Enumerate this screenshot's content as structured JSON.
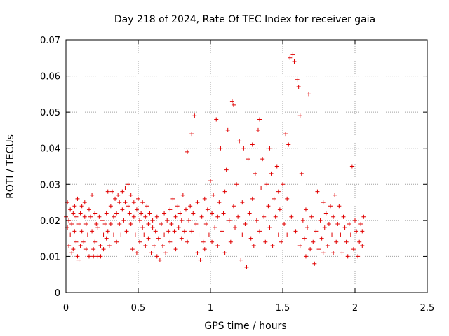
{
  "chart_data": {
    "type": "scatter",
    "title": "Day 218 of 2024, Rate Of TEC Index for receiver gaia",
    "xlabel": "GPS time / hours",
    "ylabel": "ROTI / TECUs",
    "xlim": [
      0,
      2.5
    ],
    "ylim": [
      0,
      0.07
    ],
    "xticks": [
      "0",
      "0.5",
      "1",
      "1.5",
      "2",
      "2.5"
    ],
    "yticks": [
      "0",
      "0.01",
      "0.02",
      "0.03",
      "0.04",
      "0.05",
      "0.06",
      "0.07"
    ],
    "grid": true,
    "marker": "+",
    "color": "#e00000",
    "series": [
      {
        "values": [
          [
            0.0,
            0.021
          ],
          [
            0.01,
            0.018
          ],
          [
            0.01,
            0.025
          ],
          [
            0.02,
            0.013
          ],
          [
            0.02,
            0.02
          ],
          [
            0.03,
            0.023
          ],
          [
            0.03,
            0.016
          ],
          [
            0.04,
            0.019
          ],
          [
            0.04,
            0.011
          ],
          [
            0.05,
            0.022
          ],
          [
            0.05,
            0.012
          ],
          [
            0.06,
            0.024
          ],
          [
            0.06,
            0.017
          ],
          [
            0.07,
            0.014
          ],
          [
            0.07,
            0.021
          ],
          [
            0.08,
            0.01
          ],
          [
            0.08,
            0.026
          ],
          [
            0.09,
            0.009
          ],
          [
            0.09,
            0.019
          ],
          [
            0.1,
            0.022
          ],
          [
            0.1,
            0.013
          ],
          [
            0.11,
            0.024
          ],
          [
            0.11,
            0.017
          ],
          [
            0.12,
            0.014
          ],
          [
            0.13,
            0.021
          ],
          [
            0.13,
            0.025
          ],
          [
            0.14,
            0.012
          ],
          [
            0.14,
            0.019
          ],
          [
            0.15,
            0.016
          ],
          [
            0.16,
            0.023
          ],
          [
            0.16,
            0.01
          ],
          [
            0.17,
            0.021
          ],
          [
            0.18,
            0.017
          ],
          [
            0.18,
            0.027
          ],
          [
            0.19,
            0.012
          ],
          [
            0.19,
            0.01
          ],
          [
            0.2,
            0.022
          ],
          [
            0.2,
            0.014
          ],
          [
            0.21,
            0.019
          ],
          [
            0.22,
            0.01
          ],
          [
            0.22,
            0.018
          ],
          [
            0.23,
            0.021
          ],
          [
            0.24,
            0.013
          ],
          [
            0.24,
            0.01
          ],
          [
            0.25,
            0.02
          ],
          [
            0.26,
            0.016
          ],
          [
            0.26,
            0.012
          ],
          [
            0.27,
            0.019
          ],
          [
            0.28,
            0.015
          ],
          [
            0.28,
            0.022
          ],
          [
            0.29,
            0.028
          ],
          [
            0.29,
            0.017
          ],
          [
            0.3,
            0.013
          ],
          [
            0.31,
            0.024
          ],
          [
            0.31,
            0.019
          ],
          [
            0.32,
            0.028
          ],
          [
            0.33,
            0.021
          ],
          [
            0.33,
            0.016
          ],
          [
            0.34,
            0.026
          ],
          [
            0.35,
            0.022
          ],
          [
            0.35,
            0.014
          ],
          [
            0.36,
            0.027
          ],
          [
            0.37,
            0.019
          ],
          [
            0.37,
            0.025
          ],
          [
            0.38,
            0.016
          ],
          [
            0.39,
            0.023
          ],
          [
            0.39,
            0.028
          ],
          [
            0.4,
            0.02
          ],
          [
            0.41,
            0.025
          ],
          [
            0.41,
            0.029
          ],
          [
            0.42,
            0.017
          ],
          [
            0.43,
            0.024
          ],
          [
            0.43,
            0.03
          ],
          [
            0.44,
            0.022
          ],
          [
            0.45,
            0.027
          ],
          [
            0.45,
            0.019
          ],
          [
            0.46,
            0.012
          ],
          [
            0.47,
            0.025
          ],
          [
            0.47,
            0.021
          ],
          [
            0.48,
            0.016
          ],
          [
            0.49,
            0.023
          ],
          [
            0.49,
            0.011
          ],
          [
            0.5,
            0.026
          ],
          [
            0.51,
            0.02
          ],
          [
            0.51,
            0.014
          ],
          [
            0.52,
            0.022
          ],
          [
            0.53,
            0.018
          ],
          [
            0.53,
            0.025
          ],
          [
            0.54,
            0.016
          ],
          [
            0.55,
            0.021
          ],
          [
            0.55,
            0.013
          ],
          [
            0.56,
            0.024
          ],
          [
            0.57,
            0.019
          ],
          [
            0.57,
            0.015
          ],
          [
            0.58,
            0.022
          ],
          [
            0.59,
            0.011
          ],
          [
            0.6,
            0.018
          ],
          [
            0.6,
            0.02
          ],
          [
            0.61,
            0.013
          ],
          [
            0.62,
            0.017
          ],
          [
            0.63,
            0.01
          ],
          [
            0.63,
            0.021
          ],
          [
            0.64,
            0.015
          ],
          [
            0.65,
            0.009
          ],
          [
            0.66,
            0.019
          ],
          [
            0.67,
            0.013
          ],
          [
            0.68,
            0.022
          ],
          [
            0.68,
            0.016
          ],
          [
            0.69,
            0.011
          ],
          [
            0.7,
            0.02
          ],
          [
            0.71,
            0.017
          ],
          [
            0.72,
            0.023
          ],
          [
            0.72,
            0.014
          ],
          [
            0.73,
            0.019
          ],
          [
            0.74,
            0.026
          ],
          [
            0.75,
            0.017
          ],
          [
            0.76,
            0.021
          ],
          [
            0.76,
            0.012
          ],
          [
            0.77,
            0.024
          ],
          [
            0.78,
            0.018
          ],
          [
            0.79,
            0.022
          ],
          [
            0.8,
            0.015
          ],
          [
            0.8,
            0.02
          ],
          [
            0.81,
            0.027
          ],
          [
            0.82,
            0.017
          ],
          [
            0.83,
            0.023
          ],
          [
            0.84,
            0.039
          ],
          [
            0.84,
            0.014
          ],
          [
            0.85,
            0.02
          ],
          [
            0.86,
            0.024
          ],
          [
            0.87,
            0.044
          ],
          [
            0.87,
            0.017
          ],
          [
            0.88,
            0.022
          ],
          [
            0.89,
            0.049
          ],
          [
            0.9,
            0.019
          ],
          [
            0.91,
            0.011
          ],
          [
            0.91,
            0.025
          ],
          [
            0.92,
            0.016
          ],
          [
            0.93,
            0.009
          ],
          [
            0.94,
            0.021
          ],
          [
            0.95,
            0.014
          ],
          [
            0.96,
            0.026
          ],
          [
            0.96,
            0.012
          ],
          [
            0.97,
            0.019
          ],
          [
            0.98,
            0.023
          ],
          [
            0.99,
            0.016
          ],
          [
            1.0,
            0.031
          ],
          [
            1.01,
            0.022
          ],
          [
            1.01,
            0.014
          ],
          [
            1.02,
            0.027
          ],
          [
            1.03,
            0.018
          ],
          [
            1.04,
            0.048
          ],
          [
            1.05,
            0.021
          ],
          [
            1.05,
            0.013
          ],
          [
            1.06,
            0.025
          ],
          [
            1.07,
            0.04
          ],
          [
            1.08,
            0.017
          ],
          [
            1.09,
            0.022
          ],
          [
            1.1,
            0.011
          ],
          [
            1.1,
            0.028
          ],
          [
            1.11,
            0.034
          ],
          [
            1.12,
            0.045
          ],
          [
            1.13,
            0.02
          ],
          [
            1.14,
            0.014
          ],
          [
            1.15,
            0.053
          ],
          [
            1.16,
            0.052
          ],
          [
            1.16,
            0.024
          ],
          [
            1.17,
            0.018
          ],
          [
            1.18,
            0.03
          ],
          [
            1.19,
            0.021
          ],
          [
            1.2,
            0.042
          ],
          [
            1.21,
            0.009
          ],
          [
            1.22,
            0.025
          ],
          [
            1.22,
            0.016
          ],
          [
            1.23,
            0.04
          ],
          [
            1.24,
            0.019
          ],
          [
            1.25,
            0.007
          ],
          [
            1.26,
            0.037
          ],
          [
            1.27,
            0.022
          ],
          [
            1.28,
            0.015
          ],
          [
            1.29,
            0.041
          ],
          [
            1.29,
            0.026
          ],
          [
            1.3,
            0.013
          ],
          [
            1.31,
            0.033
          ],
          [
            1.32,
            0.02
          ],
          [
            1.33,
            0.045
          ],
          [
            1.34,
            0.048
          ],
          [
            1.34,
            0.017
          ],
          [
            1.35,
            0.029
          ],
          [
            1.36,
            0.037
          ],
          [
            1.37,
            0.021
          ],
          [
            1.38,
            0.014
          ],
          [
            1.39,
            0.03
          ],
          [
            1.4,
            0.024
          ],
          [
            1.41,
            0.04
          ],
          [
            1.41,
            0.018
          ],
          [
            1.42,
            0.033
          ],
          [
            1.43,
            0.013
          ],
          [
            1.44,
            0.026
          ],
          [
            1.45,
            0.021
          ],
          [
            1.46,
            0.035
          ],
          [
            1.47,
            0.016
          ],
          [
            1.47,
            0.028
          ],
          [
            1.48,
            0.023
          ],
          [
            1.49,
            0.014
          ],
          [
            1.5,
            0.03
          ],
          [
            1.51,
            0.019
          ],
          [
            1.52,
            0.044
          ],
          [
            1.53,
            0.026
          ],
          [
            1.53,
            0.016
          ],
          [
            1.54,
            0.041
          ],
          [
            1.55,
            0.065
          ],
          [
            1.56,
            0.021
          ],
          [
            1.57,
            0.066
          ],
          [
            1.58,
            0.064
          ],
          [
            1.59,
            0.017
          ],
          [
            1.6,
            0.059
          ],
          [
            1.61,
            0.057
          ],
          [
            1.62,
            0.013
          ],
          [
            1.62,
            0.049
          ],
          [
            1.63,
            0.033
          ],
          [
            1.64,
            0.02
          ],
          [
            1.65,
            0.015
          ],
          [
            1.66,
            0.01
          ],
          [
            1.66,
            0.023
          ],
          [
            1.67,
            0.018
          ],
          [
            1.68,
            0.055
          ],
          [
            1.69,
            0.012
          ],
          [
            1.7,
            0.021
          ],
          [
            1.71,
            0.014
          ],
          [
            1.72,
            0.008
          ],
          [
            1.73,
            0.017
          ],
          [
            1.74,
            0.028
          ],
          [
            1.75,
            0.012
          ],
          [
            1.76,
            0.02
          ],
          [
            1.77,
            0.015
          ],
          [
            1.78,
            0.025
          ],
          [
            1.78,
            0.011
          ],
          [
            1.79,
            0.018
          ],
          [
            1.8,
            0.022
          ],
          [
            1.81,
            0.013
          ],
          [
            1.82,
            0.019
          ],
          [
            1.83,
            0.024
          ],
          [
            1.84,
            0.016
          ],
          [
            1.85,
            0.011
          ],
          [
            1.85,
            0.021
          ],
          [
            1.86,
            0.027
          ],
          [
            1.87,
            0.014
          ],
          [
            1.88,
            0.019
          ],
          [
            1.89,
            0.024
          ],
          [
            1.9,
            0.016
          ],
          [
            1.91,
            0.011
          ],
          [
            1.92,
            0.021
          ],
          [
            1.93,
            0.018
          ],
          [
            1.94,
            0.014
          ],
          [
            1.95,
            0.01
          ],
          [
            1.96,
            0.019
          ],
          [
            1.97,
            0.016
          ],
          [
            1.98,
            0.035
          ],
          [
            1.99,
            0.012
          ],
          [
            2.0,
            0.02
          ],
          [
            2.01,
            0.017
          ],
          [
            2.02,
            0.01
          ],
          [
            2.03,
            0.014
          ],
          [
            2.04,
            0.019
          ],
          [
            2.05,
            0.013
          ],
          [
            2.05,
            0.017
          ],
          [
            2.06,
            0.021
          ]
        ]
      }
    ]
  }
}
